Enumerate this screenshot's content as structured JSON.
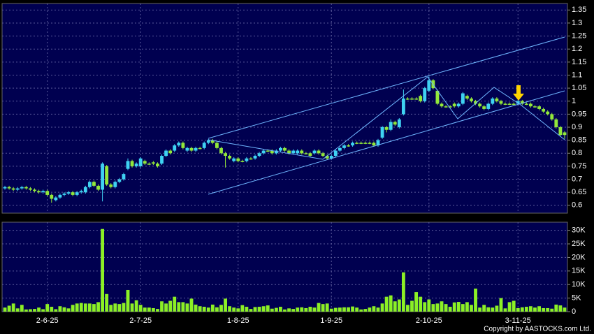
{
  "chart_data": [
    {
      "type": "candlestick",
      "categories": [
        null,
        null,
        null,
        null,
        null,
        null,
        null,
        null,
        null,
        null,
        "2-6-25",
        null,
        null,
        null,
        null,
        null,
        null,
        null,
        null,
        null,
        null,
        null,
        null,
        null,
        null,
        null,
        null,
        null,
        null,
        null,
        null,
        null,
        "2-7-25",
        null,
        null,
        null,
        null,
        null,
        null,
        null,
        null,
        null,
        null,
        null,
        null,
        null,
        null,
        null,
        null,
        null,
        null,
        null,
        null,
        null,
        null,
        "1-8-25",
        null,
        null,
        null,
        null,
        null,
        null,
        null,
        null,
        null,
        null,
        null,
        null,
        null,
        null,
        null,
        null,
        null,
        null,
        null,
        null,
        null,
        "1-9-25",
        null,
        null,
        null,
        null,
        null,
        null,
        null,
        null,
        null,
        null,
        null,
        null,
        null,
        null,
        null,
        null,
        null,
        null,
        null,
        null,
        null,
        null,
        "2-10-25",
        null,
        null,
        null,
        null,
        null,
        null,
        null,
        null,
        null,
        null,
        null,
        null,
        null,
        null,
        null,
        null,
        null,
        null,
        null,
        null,
        "3-11-25",
        null,
        null,
        null,
        null,
        null,
        null,
        null,
        null,
        null,
        null,
        null
      ],
      "open": [
        0.665,
        0.67,
        0.665,
        0.66,
        0.665,
        0.67,
        0.665,
        0.66,
        0.655,
        0.65,
        0.655,
        0.64,
        0.62,
        0.63,
        0.64,
        0.645,
        0.65,
        0.64,
        0.65,
        0.65,
        0.67,
        0.69,
        0.675,
        0.66,
        0.75,
        0.68,
        0.67,
        0.69,
        0.7,
        0.74,
        0.77,
        0.75,
        0.75,
        0.77,
        0.76,
        0.765,
        0.76,
        0.76,
        0.79,
        0.81,
        0.81,
        0.83,
        0.84,
        0.81,
        0.82,
        0.81,
        0.82,
        0.82,
        0.84,
        0.85,
        0.84,
        0.82,
        0.8,
        0.79,
        0.77,
        0.78,
        0.77,
        0.77,
        0.78,
        0.78,
        0.79,
        0.8,
        0.81,
        0.81,
        0.8,
        0.81,
        0.82,
        0.81,
        0.8,
        0.8,
        0.81,
        0.8,
        0.8,
        0.8,
        0.81,
        0.8,
        0.79,
        0.78,
        0.79,
        0.81,
        0.82,
        0.83,
        0.83,
        0.84,
        0.84,
        0.84,
        0.84,
        0.84,
        0.83,
        0.86,
        0.9,
        0.89,
        0.92,
        0.9,
        0.95,
        1.01,
        1.01,
        1.01,
        1.02,
        1.0,
        1.04,
        1.08,
        1.04,
        0.99,
        0.98,
        0.98,
        0.99,
        0.98,
        0.99,
        1.02,
        1.01,
        1.0,
        0.99,
        0.98,
        0.97,
        0.99,
        1.01,
        1.0,
        0.99,
        0.99,
        0.99,
        0.99,
        1.0,
        0.99,
        0.99,
        0.98,
        0.98,
        0.97,
        0.96,
        0.95,
        0.93,
        0.9,
        0.88
      ],
      "high": [
        0.675,
        0.675,
        0.67,
        0.67,
        0.675,
        0.675,
        0.67,
        0.665,
        0.66,
        0.66,
        0.66,
        0.645,
        0.635,
        0.645,
        0.65,
        0.655,
        0.655,
        0.655,
        0.66,
        0.675,
        0.695,
        0.695,
        0.68,
        0.765,
        0.755,
        0.685,
        0.695,
        0.705,
        0.725,
        0.78,
        0.775,
        0.765,
        0.785,
        0.775,
        0.765,
        0.77,
        0.765,
        0.795,
        0.815,
        0.815,
        0.835,
        0.845,
        0.845,
        0.825,
        0.825,
        0.825,
        0.825,
        0.845,
        0.855,
        0.855,
        0.845,
        0.825,
        0.805,
        0.795,
        0.785,
        0.785,
        0.775,
        0.785,
        0.785,
        0.795,
        0.805,
        0.815,
        0.815,
        0.815,
        0.815,
        0.825,
        0.825,
        0.815,
        0.815,
        0.815,
        0.815,
        0.805,
        0.805,
        0.815,
        0.815,
        0.805,
        0.795,
        0.795,
        0.815,
        0.825,
        0.835,
        0.835,
        0.845,
        0.845,
        0.845,
        0.845,
        0.845,
        0.845,
        0.855,
        0.905,
        0.905,
        0.93,
        0.925,
        0.935,
        1.045,
        1.015,
        1.015,
        1.015,
        1.025,
        1.055,
        1.095,
        1.085,
        1.045,
        0.995,
        0.985,
        0.985,
        0.995,
        0.995,
        1.035,
        1.025,
        1.015,
        1.005,
        0.995,
        0.985,
        0.995,
        1.015,
        1.015,
        1.005,
        0.995,
        0.995,
        0.995,
        1.005,
        1.005,
        0.995,
        0.995,
        0.985,
        0.985,
        0.975,
        0.965,
        0.955,
        0.935,
        0.905,
        0.885
      ],
      "low": [
        0.66,
        0.66,
        0.655,
        0.655,
        0.66,
        0.66,
        0.655,
        0.65,
        0.645,
        0.645,
        0.635,
        0.61,
        0.615,
        0.625,
        0.635,
        0.64,
        0.635,
        0.635,
        0.645,
        0.645,
        0.665,
        0.67,
        0.655,
        0.615,
        0.675,
        0.665,
        0.665,
        0.685,
        0.695,
        0.735,
        0.745,
        0.745,
        0.745,
        0.755,
        0.755,
        0.755,
        0.745,
        0.755,
        0.785,
        0.795,
        0.805,
        0.825,
        0.815,
        0.805,
        0.805,
        0.805,
        0.815,
        0.815,
        0.835,
        0.835,
        0.815,
        0.795,
        0.745,
        0.775,
        0.765,
        0.765,
        0.765,
        0.765,
        0.775,
        0.775,
        0.785,
        0.795,
        0.805,
        0.795,
        0.795,
        0.805,
        0.805,
        0.795,
        0.795,
        0.795,
        0.795,
        0.795,
        0.785,
        0.795,
        0.795,
        0.785,
        0.775,
        0.775,
        0.785,
        0.805,
        0.815,
        0.825,
        0.825,
        0.835,
        0.835,
        0.835,
        0.835,
        0.825,
        0.825,
        0.855,
        0.88,
        0.885,
        0.905,
        0.895,
        0.945,
        1.005,
        1.005,
        1.005,
        0.995,
        0.995,
        1.035,
        1.045,
        0.985,
        0.975,
        0.975,
        0.975,
        0.975,
        0.975,
        0.985,
        1.005,
        0.995,
        0.985,
        0.975,
        0.965,
        0.965,
        0.985,
        0.995,
        0.985,
        0.985,
        0.985,
        0.985,
        0.985,
        0.985,
        0.985,
        0.975,
        0.975,
        0.965,
        0.955,
        0.945,
        0.925,
        0.895,
        0.865,
        0.855
      ],
      "close": [
        0.67,
        0.665,
        0.66,
        0.665,
        0.67,
        0.665,
        0.66,
        0.655,
        0.65,
        0.655,
        0.64,
        0.625,
        0.63,
        0.64,
        0.645,
        0.65,
        0.64,
        0.65,
        0.655,
        0.67,
        0.69,
        0.675,
        0.66,
        0.76,
        0.68,
        0.67,
        0.69,
        0.7,
        0.72,
        0.77,
        0.75,
        0.76,
        0.78,
        0.76,
        0.76,
        0.76,
        0.75,
        0.79,
        0.81,
        0.8,
        0.83,
        0.84,
        0.82,
        0.82,
        0.81,
        0.82,
        0.82,
        0.84,
        0.85,
        0.84,
        0.82,
        0.8,
        0.79,
        0.78,
        0.78,
        0.77,
        0.77,
        0.78,
        0.78,
        0.79,
        0.8,
        0.81,
        0.81,
        0.8,
        0.81,
        0.82,
        0.81,
        0.8,
        0.81,
        0.81,
        0.8,
        0.8,
        0.79,
        0.81,
        0.8,
        0.79,
        0.78,
        0.79,
        0.81,
        0.82,
        0.83,
        0.83,
        0.84,
        0.84,
        0.84,
        0.84,
        0.84,
        0.83,
        0.85,
        0.9,
        0.89,
        0.92,
        0.91,
        0.93,
        1.01,
        1.01,
        1.01,
        1.01,
        1.0,
        1.05,
        1.08,
        1.05,
        0.99,
        0.98,
        0.98,
        0.98,
        0.98,
        0.99,
        1.03,
        1.01,
        1.0,
        0.99,
        0.98,
        0.97,
        0.99,
        1.01,
        1.0,
        0.99,
        0.99,
        0.99,
        0.99,
        1.0,
        0.99,
        0.99,
        0.98,
        0.98,
        0.97,
        0.96,
        0.95,
        0.93,
        0.9,
        0.87,
        0.87
      ],
      "up_color": "#3fd2f2",
      "down_color": "#92e83a",
      "ylim": [
        0.57,
        1.375
      ],
      "yticks": [
        0.6,
        0.65,
        0.7,
        0.75,
        0.8,
        0.85,
        0.9,
        0.95,
        1,
        1.05,
        1.1,
        1.15,
        1.2,
        1.25,
        1.3,
        1.35
      ],
      "grid": true
    },
    {
      "type": "bar",
      "values": [
        1500,
        2200,
        3000,
        1200,
        2500,
        800,
        900,
        1000,
        1500,
        900,
        2800,
        1800,
        900,
        2000,
        1600,
        1200,
        2500,
        3000,
        3200,
        3000,
        3000,
        2800,
        3500,
        30500,
        6500,
        2500,
        3000,
        2800,
        3200,
        8000,
        3000,
        4200,
        2500,
        1500,
        1500,
        1300,
        1000,
        3800,
        3000,
        4000,
        5500,
        3500,
        3500,
        3000,
        4800,
        2600,
        2000,
        1800,
        1500,
        2600,
        1600,
        2500,
        4800,
        2000,
        1500,
        1200,
        2400,
        1800,
        1000,
        1700,
        1800,
        2000,
        2300,
        1100,
        1400,
        1800,
        800,
        1200,
        1000,
        1500,
        1600,
        1300,
        1800,
        1500,
        3200,
        2800,
        3000,
        1100,
        1400,
        1500,
        1600,
        1600,
        1900,
        1500,
        800,
        1000,
        1500,
        2000,
        1500,
        3000,
        5500,
        6000,
        3800,
        4500,
        14500,
        2500,
        4000,
        7200,
        5500,
        3500,
        4500,
        2800,
        3000,
        3800,
        2800,
        1800,
        3400,
        3600,
        2800,
        3500,
        2500,
        8500,
        1500,
        2500,
        1600,
        1500,
        2200,
        5000,
        1200,
        3500,
        4000,
        1300,
        1600,
        1800,
        2000,
        1500,
        2000,
        1300,
        1300,
        1100,
        2600,
        2300,
        1500
      ],
      "color": "#8cf025",
      "ylim": [
        0,
        33000
      ],
      "yticks": [
        0,
        {
          "value": 5000,
          "label": "5K"
        },
        {
          "value": 10000,
          "label": "10K"
        },
        {
          "value": 15000,
          "label": "15K"
        },
        {
          "value": 20000,
          "label": "20K"
        },
        {
          "value": 25000,
          "label": "25K"
        },
        {
          "value": 30000,
          "label": "30K"
        }
      ],
      "grid": true
    }
  ],
  "copyright": "Copyright by AASTOCKS.com Ltd."
}
